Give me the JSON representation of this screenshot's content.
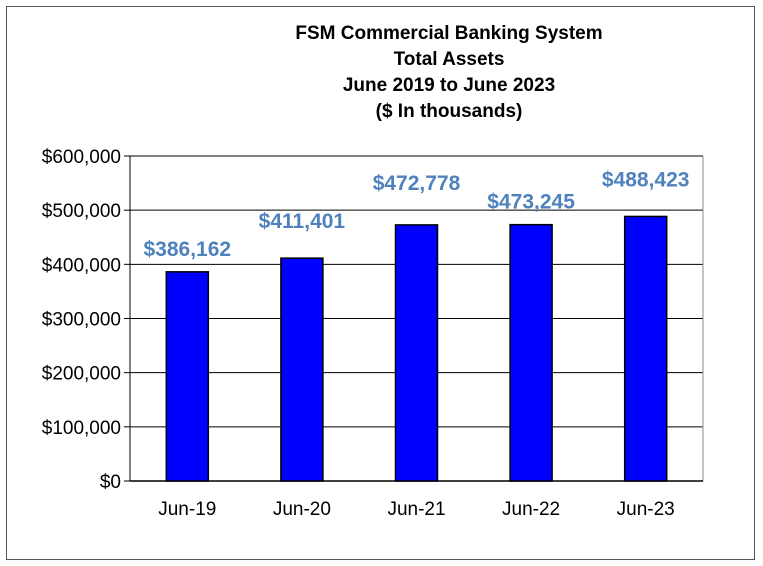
{
  "chart_data": {
    "type": "bar",
    "title_lines": [
      "FSM Commercial Banking System",
      "Total Assets",
      "June 2019 to June 2023",
      "($ In thousands)"
    ],
    "categories": [
      "Jun-19",
      "Jun-20",
      "Jun-21",
      "Jun-22",
      "Jun-23"
    ],
    "values": [
      386162,
      411401,
      472778,
      473245,
      488423
    ],
    "data_labels": [
      "$386,162",
      "$411,401",
      "$472,778",
      "$473,245",
      "$488,423"
    ],
    "y_ticks": [
      "$0",
      "$100,000",
      "$200,000",
      "$300,000",
      "$400,000",
      "$500,000",
      "$600,000"
    ],
    "ylim": [
      0,
      600000
    ],
    "grid": true,
    "legend": "none",
    "colors": {
      "bar_fill": "#0000ff",
      "bar_stroke": "#000000",
      "data_label": "#4f81bd",
      "gridline": "#000000"
    }
  }
}
